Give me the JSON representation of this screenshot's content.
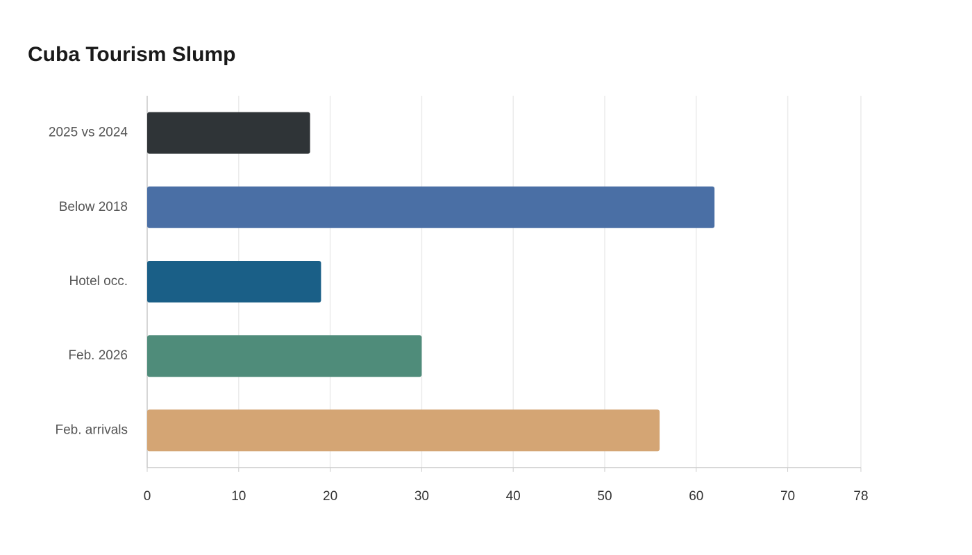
{
  "chart_data": {
    "type": "bar",
    "orientation": "horizontal",
    "title": "Cuba Tourism Slump",
    "categories": [
      "2025 vs 2024",
      "Below 2018",
      "Hotel occ.",
      "Feb. 2026",
      "Feb. arrivals"
    ],
    "values": [
      17.8,
      62,
      19,
      30,
      56
    ],
    "colors": [
      "#2f3437",
      "#4a6fa5",
      "#1a5f87",
      "#4f8c7a",
      "#d4a574"
    ],
    "xlim": [
      0,
      78
    ],
    "xticks": [
      0,
      10,
      20,
      30,
      40,
      50,
      60,
      70,
      78
    ],
    "grid": true
  }
}
